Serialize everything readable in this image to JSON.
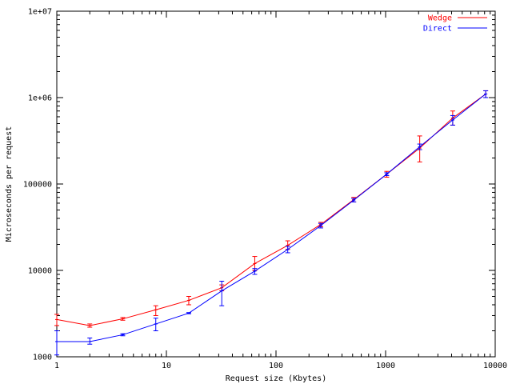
{
  "chart_data": {
    "type": "line",
    "title": "",
    "xlabel": "Request size (Kbytes)",
    "ylabel": "Microseconds per request",
    "xscale": "log",
    "yscale": "log",
    "xlim": [
      1,
      10000
    ],
    "ylim": [
      1000,
      10000000
    ],
    "xticks": [
      {
        "value": 1,
        "label": "1"
      },
      {
        "value": 10,
        "label": "10"
      },
      {
        "value": 100,
        "label": "100"
      },
      {
        "value": 1000,
        "label": "1000"
      },
      {
        "value": 10000,
        "label": "10000"
      }
    ],
    "yticks": [
      {
        "value": 1000,
        "label": "1000"
      },
      {
        "value": 10000,
        "label": "10000"
      },
      {
        "value": 100000,
        "label": "100000"
      },
      {
        "value": 1000000,
        "label": "1e+06"
      },
      {
        "value": 10000000,
        "label": "1e+07"
      }
    ],
    "grid": false,
    "legend": "top-right",
    "x": [
      1,
      2,
      4,
      8,
      16,
      32,
      64,
      128,
      256,
      512,
      1024,
      2048,
      4096,
      8192
    ],
    "series": [
      {
        "name": "Wedge",
        "color": "#ff0000",
        "values": [
          2700,
          2300,
          2750,
          3500,
          4500,
          6300,
          12000,
          19500,
          34000,
          66000,
          130000,
          260000,
          580000,
          1100000
        ],
        "err_low": [
          2300,
          2200,
          2650,
          3000,
          4000,
          5800,
          10000,
          17500,
          32000,
          62000,
          120000,
          180000,
          480000,
          1000000
        ],
        "err_high": [
          3100,
          2400,
          2850,
          3900,
          5000,
          6800,
          14500,
          22000,
          36000,
          70000,
          140000,
          360000,
          700000,
          1200000
        ]
      },
      {
        "name": "Direct",
        "color": "#0000ff",
        "values": [
          1500,
          1500,
          1800,
          2400,
          3200,
          5800,
          9800,
          17500,
          33000,
          65000,
          130000,
          270000,
          550000,
          1100000
        ],
        "err_low": [
          1050,
          1400,
          1750,
          2000,
          3150,
          3900,
          9000,
          16000,
          31000,
          62000,
          125000,
          250000,
          480000,
          1000000
        ],
        "err_high": [
          2000,
          1650,
          1850,
          2800,
          3250,
          7500,
          10500,
          19000,
          35000,
          68000,
          135000,
          290000,
          620000,
          1200000
        ]
      }
    ]
  }
}
